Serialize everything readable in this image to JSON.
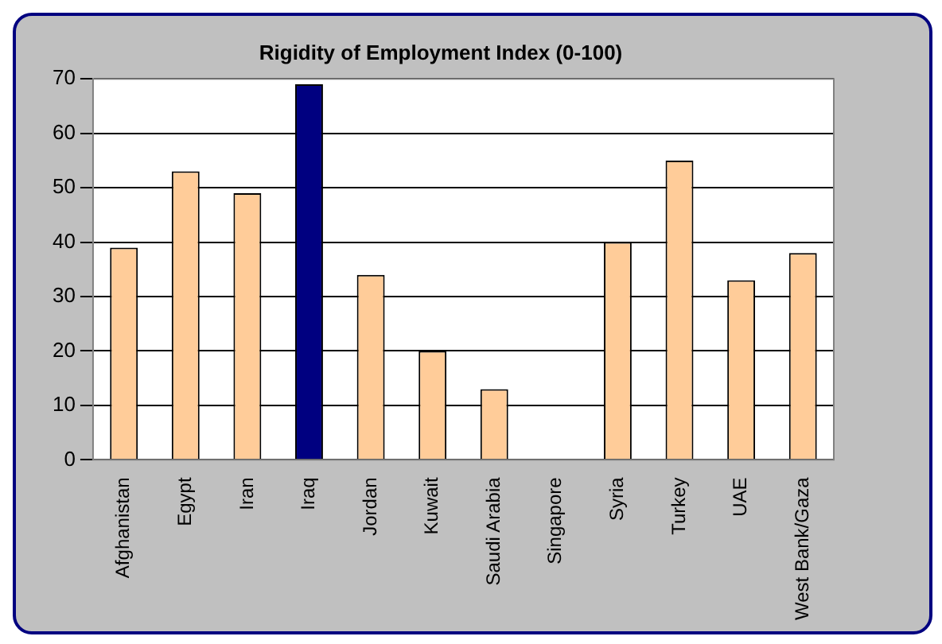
{
  "chart_data": {
    "type": "bar",
    "title": "Rigidity of Employment Index (0-100)",
    "categories": [
      "Afghanistan",
      "Egypt",
      "Iran",
      "Iraq",
      "Jordan",
      "Kuwait",
      "Saudi Arabia",
      "Singapore",
      "Syria",
      "Turkey",
      "UAE",
      "West Bank/Gaza"
    ],
    "values": [
      39,
      53,
      49,
      69,
      34,
      20,
      13,
      0,
      40,
      55,
      33,
      38
    ],
    "colors": [
      "#ffcc99",
      "#ffcc99",
      "#ffcc99",
      "#000080",
      "#ffcc99",
      "#ffcc99",
      "#ffcc99",
      "#ffcc99",
      "#ffcc99",
      "#ffcc99",
      "#ffcc99",
      "#ffcc99"
    ],
    "ylim": [
      0,
      70
    ],
    "yticks": [
      0,
      10,
      20,
      30,
      40,
      50,
      60,
      70
    ],
    "grid": "y",
    "legend": false
  }
}
